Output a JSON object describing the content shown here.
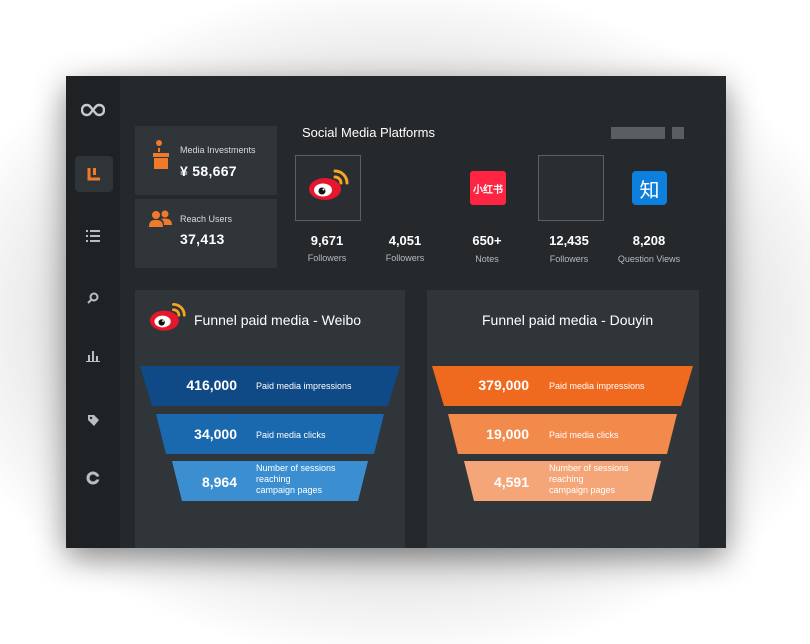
{
  "summary": {
    "investments_label": "Media Investments",
    "investments_value": "¥ 58,667",
    "reach_label": "Reach Users",
    "reach_value": "37,413"
  },
  "platforms": {
    "title": "Social Media Platforms",
    "metrics": [
      {
        "value": "9,671",
        "label": "Followers"
      },
      {
        "value": "4,051",
        "label": "Followers"
      },
      {
        "value": "650+",
        "label": "Notes"
      },
      {
        "value": "12,435",
        "label": "Followers"
      },
      {
        "value": "8,208",
        "label": "Question Views"
      }
    ],
    "xiaohongshu_logo_text": "小红书",
    "zhihu_logo_text": "知"
  },
  "funnel_weibo": {
    "title": "Funnel paid media - Weibo",
    "colors": [
      "#0f4a86",
      "#1a68ad",
      "#3b8fd1"
    ],
    "stages": [
      {
        "value": "416,000",
        "label": "Paid media impressions"
      },
      {
        "value": "34,000",
        "label": "Paid media clicks"
      },
      {
        "value": "8,964",
        "label_lines": [
          "Number of sessions",
          "reaching",
          "campaign pages"
        ]
      }
    ]
  },
  "funnel_douyin": {
    "title": "Funnel paid media - Douyin",
    "colors": [
      "#ef6a1f",
      "#f28a4c",
      "#f4a679"
    ],
    "stages": [
      {
        "value": "379,000",
        "label": "Paid media impressions"
      },
      {
        "value": "19,000",
        "label": "Paid media clicks"
      },
      {
        "value": "4,591",
        "label_lines": [
          "Number of sessions",
          "reaching",
          "campaign pages"
        ]
      }
    ]
  },
  "icons": {
    "sidebar": [
      "infinity-logo-icon",
      "dashboard-icon",
      "list-icon",
      "search-icon",
      "bar-chart-icon",
      "tag-icon",
      "settings-icon"
    ]
  }
}
